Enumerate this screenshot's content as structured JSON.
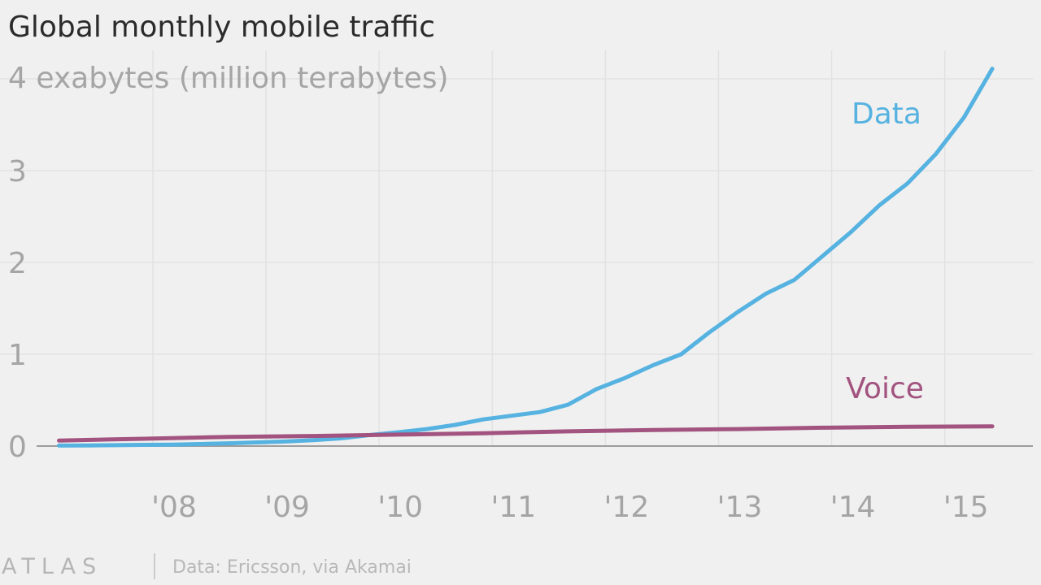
{
  "chart_data": {
    "type": "line",
    "title": "Global monthly mobile traffic",
    "y_axis": {
      "ticks": [
        0,
        1,
        2,
        3,
        4
      ],
      "tick_labels": [
        "0",
        "1",
        "2",
        "3",
        "4"
      ],
      "top_label": "4 exabytes (million terabytes)",
      "ylim": [
        0,
        4.4
      ]
    },
    "x_axis": {
      "range": [
        2007.1,
        2015.55
      ],
      "ticks": [
        2008,
        2009,
        2010,
        2011,
        2012,
        2013,
        2014,
        2015
      ],
      "tick_labels": [
        "'08",
        "'09",
        "'10",
        "'11",
        "'12",
        "'13",
        "'14",
        "'15"
      ]
    },
    "grid": true,
    "series": [
      {
        "name": "Data",
        "color": "#56b2e0",
        "points": [
          [
            2007.17,
            0.005
          ],
          [
            2007.42,
            0.007
          ],
          [
            2007.67,
            0.01
          ],
          [
            2007.92,
            0.013
          ],
          [
            2008.17,
            0.016
          ],
          [
            2008.42,
            0.022
          ],
          [
            2008.67,
            0.03
          ],
          [
            2008.92,
            0.04
          ],
          [
            2009.17,
            0.05
          ],
          [
            2009.42,
            0.065
          ],
          [
            2009.67,
            0.085
          ],
          [
            2009.92,
            0.12
          ],
          [
            2010.17,
            0.15
          ],
          [
            2010.42,
            0.185
          ],
          [
            2010.67,
            0.23
          ],
          [
            2010.92,
            0.29
          ],
          [
            2011.17,
            0.33
          ],
          [
            2011.42,
            0.37
          ],
          [
            2011.67,
            0.45
          ],
          [
            2011.92,
            0.62
          ],
          [
            2012.17,
            0.74
          ],
          [
            2012.42,
            0.88
          ],
          [
            2012.67,
            1.0
          ],
          [
            2012.92,
            1.24
          ],
          [
            2013.17,
            1.46
          ],
          [
            2013.42,
            1.66
          ],
          [
            2013.67,
            1.81
          ],
          [
            2013.92,
            2.07
          ],
          [
            2014.17,
            2.33
          ],
          [
            2014.42,
            2.62
          ],
          [
            2014.67,
            2.86
          ],
          [
            2014.92,
            3.18
          ],
          [
            2015.17,
            3.58
          ],
          [
            2015.42,
            4.11
          ]
        ]
      },
      {
        "name": "Voice",
        "color": "#a2537f",
        "points": [
          [
            2007.17,
            0.06
          ],
          [
            2007.92,
            0.08
          ],
          [
            2008.67,
            0.1
          ],
          [
            2009.42,
            0.11
          ],
          [
            2010.17,
            0.125
          ],
          [
            2010.92,
            0.14
          ],
          [
            2011.67,
            0.16
          ],
          [
            2012.42,
            0.175
          ],
          [
            2013.17,
            0.185
          ],
          [
            2013.92,
            0.2
          ],
          [
            2014.67,
            0.21
          ],
          [
            2015.42,
            0.215
          ]
        ]
      }
    ]
  },
  "footer": {
    "logo": "ATLAS",
    "source": "Data: Ericsson, via Akamai"
  }
}
